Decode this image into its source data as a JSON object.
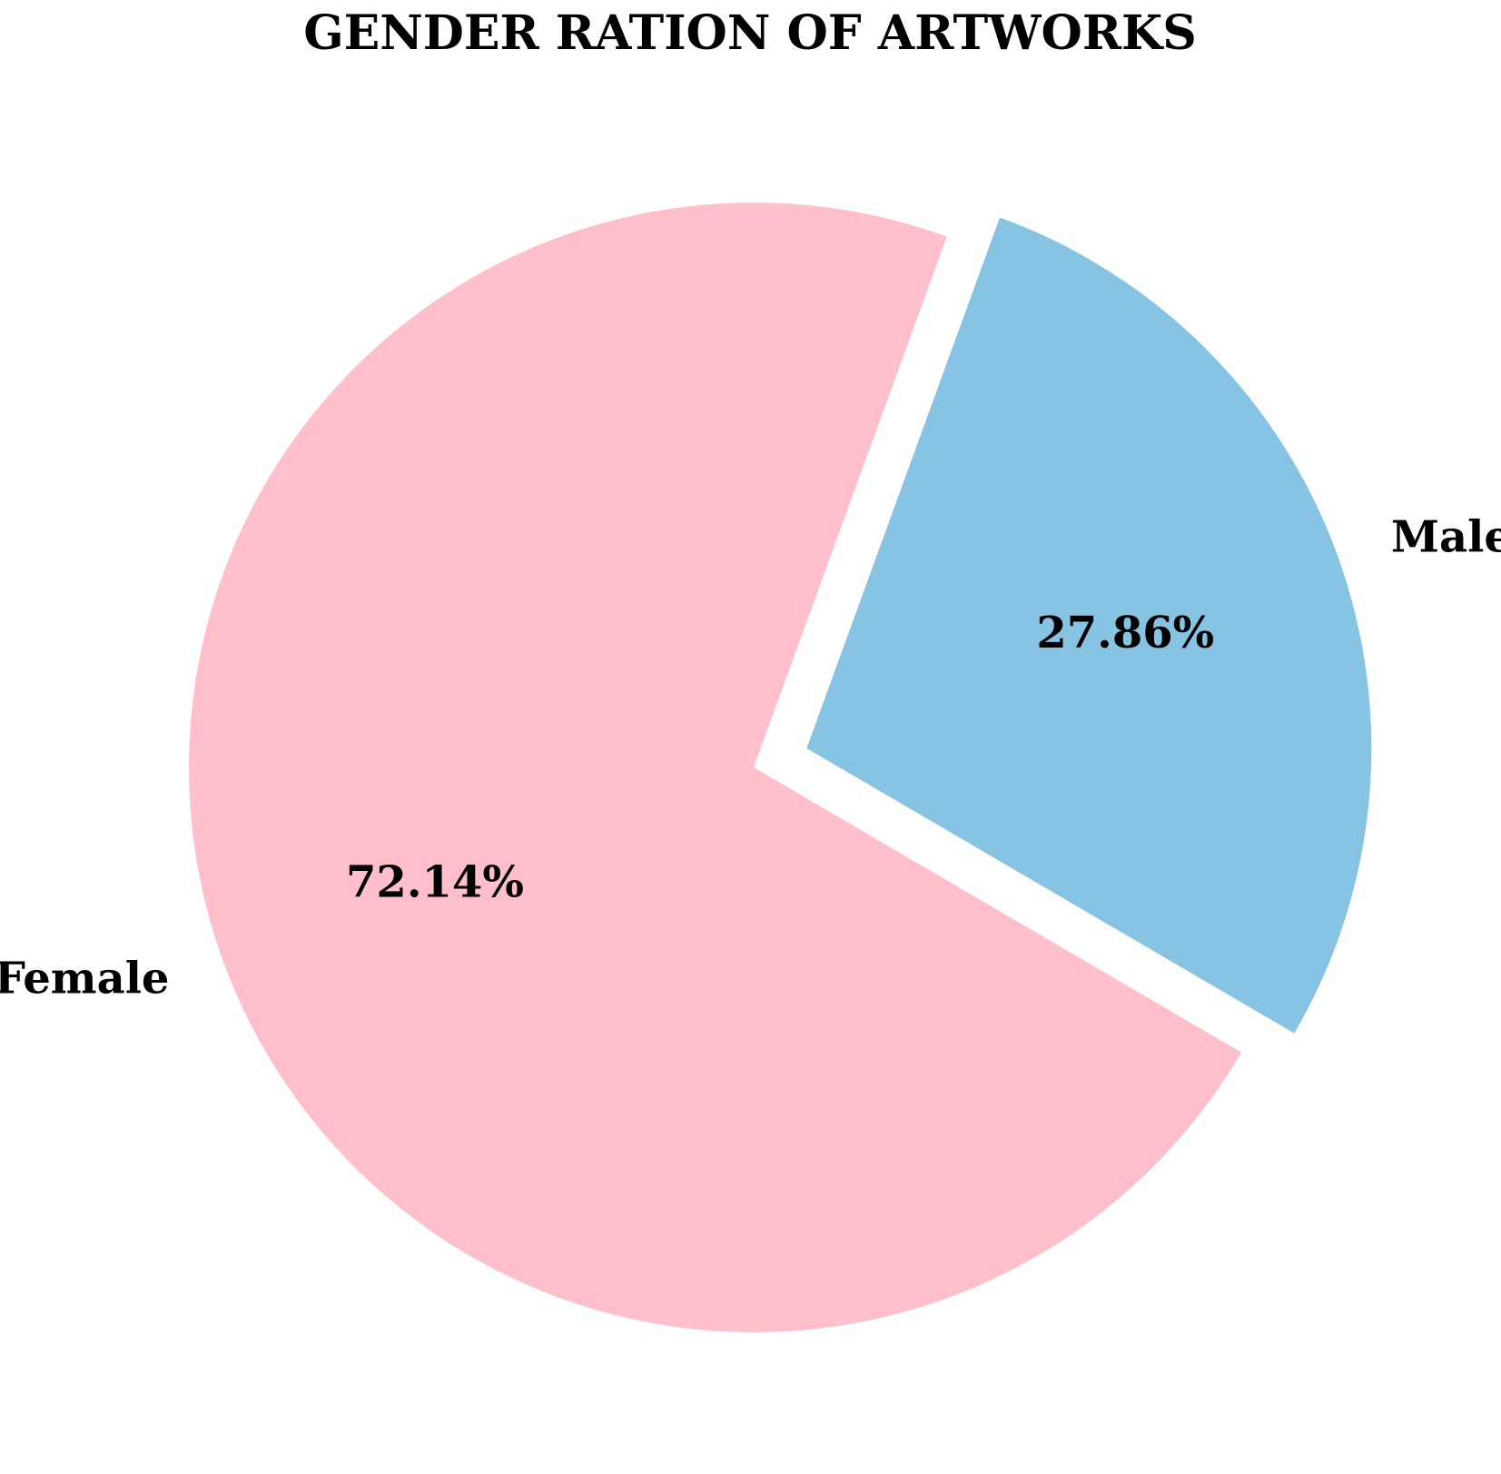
{
  "chart_data": {
    "type": "pie",
    "title": "GENDER RATION OF ARTWORKS",
    "categories": [
      "Female",
      "Male"
    ],
    "values": [
      72.14,
      27.86
    ],
    "value_labels": [
      "72.14%",
      "27.86%"
    ],
    "colors": [
      "#FFC0CB",
      "#87C4E3"
    ],
    "exploded": [
      false,
      true
    ],
    "legend": "none",
    "start_angle_deg": 70,
    "direction": "counterclockwise"
  }
}
